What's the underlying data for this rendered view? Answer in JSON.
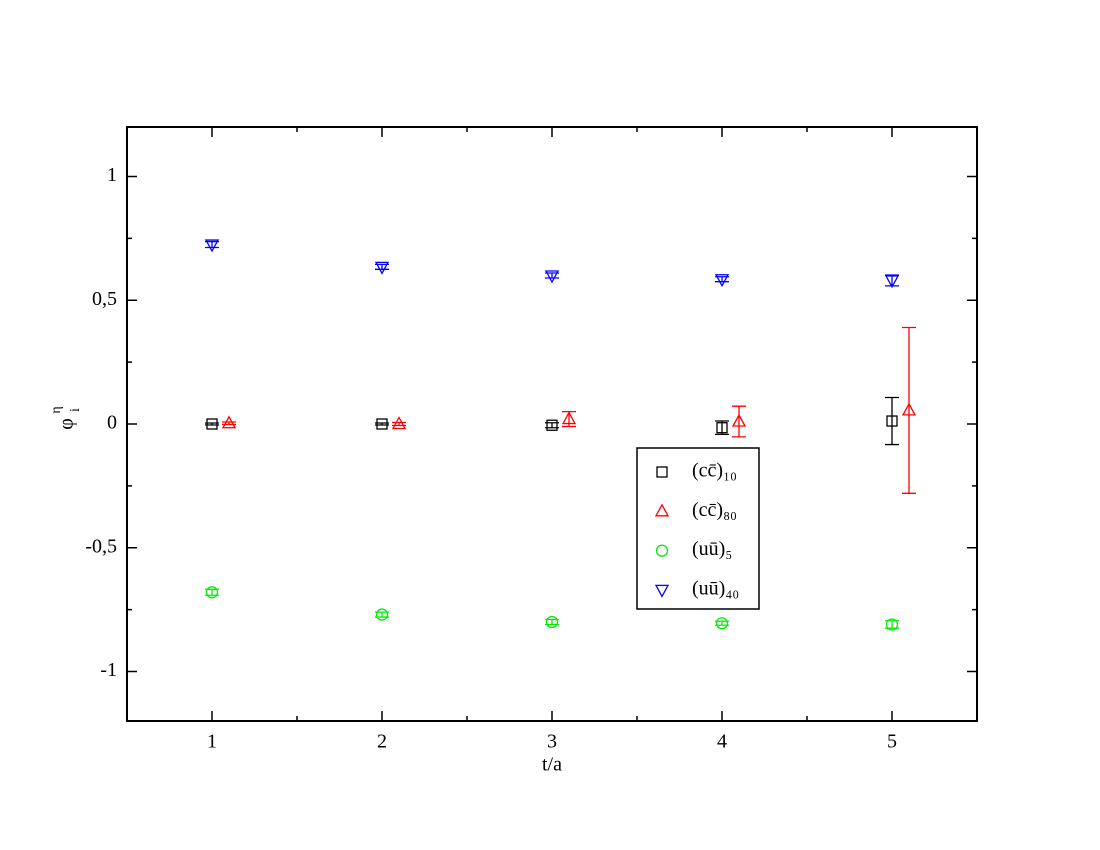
{
  "chart_data": {
    "type": "scatter",
    "x_label": "t/a",
    "y_label": {
      "symbol": "φ",
      "sub": "i",
      "sup": "η"
    },
    "xlim": [
      0.5,
      5.5
    ],
    "xticks": [
      1,
      2,
      3,
      4,
      5
    ],
    "ylim": [
      -1.2,
      1.2
    ],
    "yticks": [
      -1,
      {
        "value": -0.5,
        "label": "-0,5"
      },
      0,
      {
        "value": 0.5,
        "label": "0,5"
      },
      1
    ],
    "minor_ticks": true,
    "series": [
      {
        "name": "(cc̄)₁₀",
        "marker": "square",
        "color": "#000000",
        "x": [
          1,
          2,
          3,
          4,
          5
        ],
        "values": [
          0,
          0,
          -0.005,
          -0.015,
          0.012
        ],
        "errors": [
          0.004,
          0.004,
          0.01,
          0.027,
          0.095
        ]
      },
      {
        "name": "(cc̄)₈₀",
        "marker": "triangle-up",
        "color": "#ff0000",
        "x": [
          1.1,
          2.1,
          3.1,
          4.1,
          5.1
        ],
        "values": [
          0.003,
          0,
          0.02,
          0.01,
          0.055
        ],
        "errors": [
          0.005,
          0.006,
          0.03,
          0.062,
          0.335
        ]
      },
      {
        "name": "(uū)₅",
        "marker": "circle",
        "color": "#00ee00",
        "x": [
          1,
          2,
          3,
          4,
          5
        ],
        "values": [
          -0.68,
          -0.77,
          -0.8,
          -0.805,
          -0.81
        ],
        "errors": [
          0.012,
          0.01,
          0.01,
          0.008,
          0.015
        ]
      },
      {
        "name": "(uū)₄₀",
        "marker": "triangle-down",
        "color": "#0000ff",
        "x": [
          1,
          2,
          3,
          4,
          5
        ],
        "values": [
          0.725,
          0.635,
          0.6,
          0.585,
          0.58
        ],
        "errors": [
          0.012,
          0.01,
          0.01,
          0.01,
          0.022
        ]
      }
    ]
  }
}
